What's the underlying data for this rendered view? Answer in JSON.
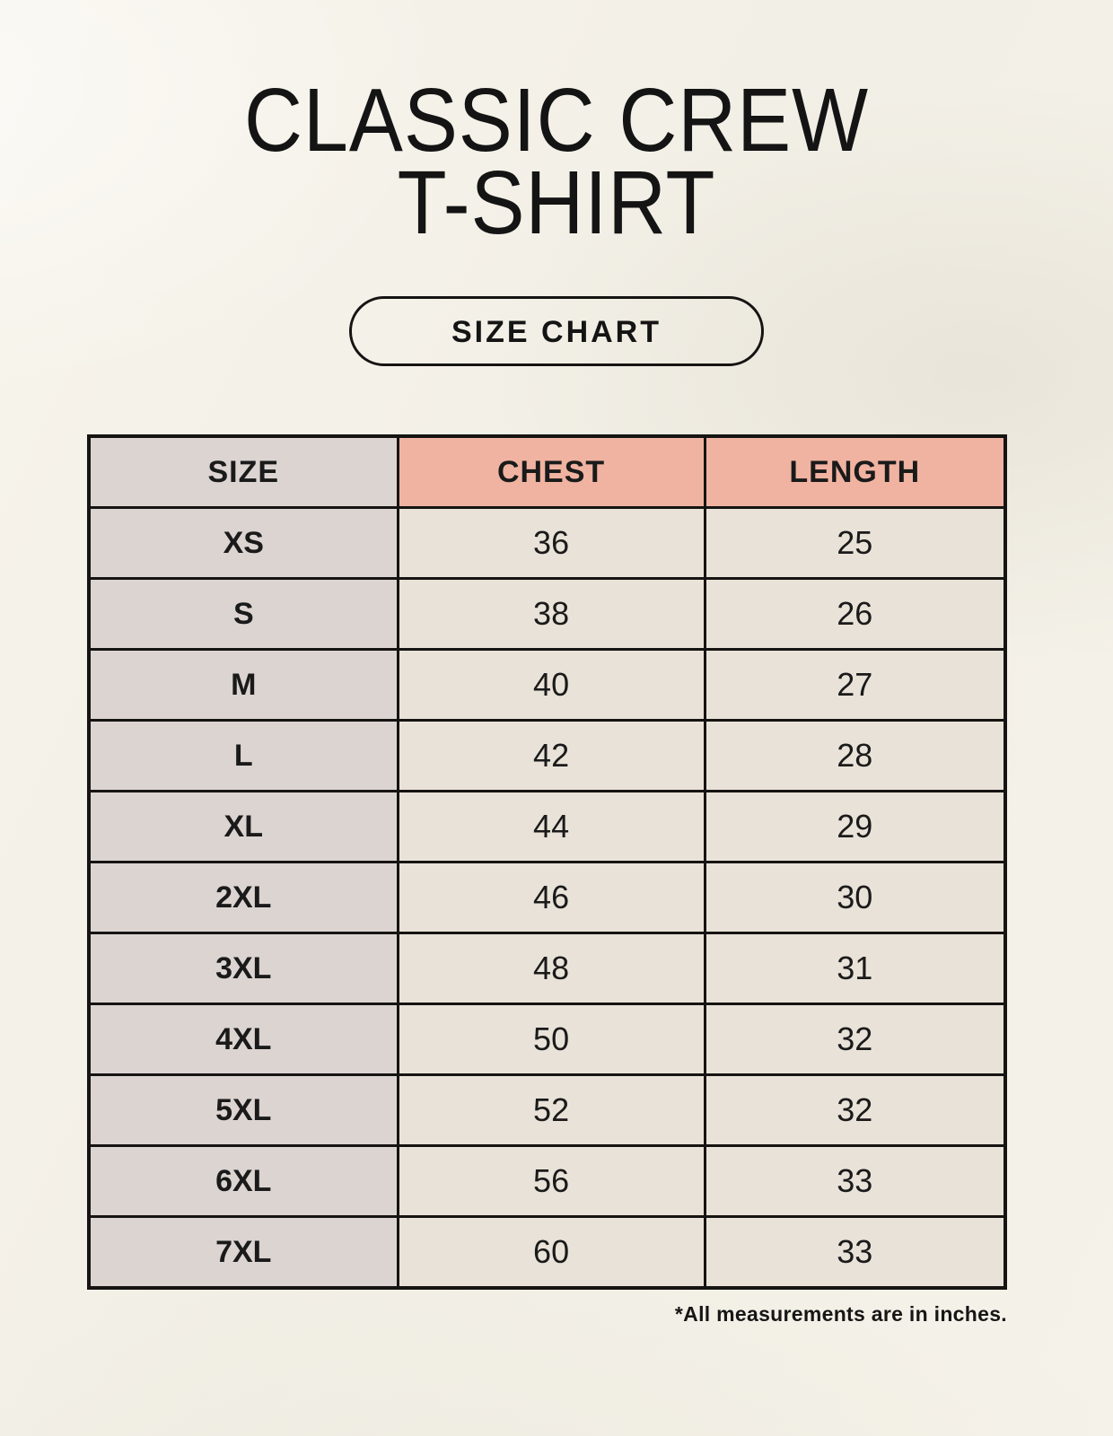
{
  "page": {
    "title_lines": [
      "CLASSIC CREW",
      "T-SHIRT"
    ],
    "size_chart_button_label": "SIZE CHART",
    "footnote": "*All measurements are in inches."
  },
  "table": {
    "columns": [
      "SIZE",
      "CHEST",
      "LENGTH"
    ],
    "rows": [
      {
        "size": "XS",
        "chest": "36",
        "length": "25"
      },
      {
        "size": "S",
        "chest": "38",
        "length": "26"
      },
      {
        "size": "M",
        "chest": "40",
        "length": "27"
      },
      {
        "size": "L",
        "chest": "42",
        "length": "28"
      },
      {
        "size": "XL",
        "chest": "44",
        "length": "29"
      },
      {
        "size": "2XL",
        "chest": "46",
        "length": "30"
      },
      {
        "size": "3XL",
        "chest": "48",
        "length": "31"
      },
      {
        "size": "4XL",
        "chest": "50",
        "length": "32"
      },
      {
        "size": "5XL",
        "chest": "52",
        "length": "32"
      },
      {
        "size": "6XL",
        "chest": "56",
        "length": "33"
      },
      {
        "size": "7XL",
        "chest": "60",
        "length": "33"
      }
    ]
  },
  "colors": {
    "page_background": "#F3F0E7",
    "header_accent": "#F0B3A1",
    "size_column": "#DBD4D1",
    "value_cell": "#E9E2D8",
    "table_border": "#161412",
    "text": "#141414"
  }
}
